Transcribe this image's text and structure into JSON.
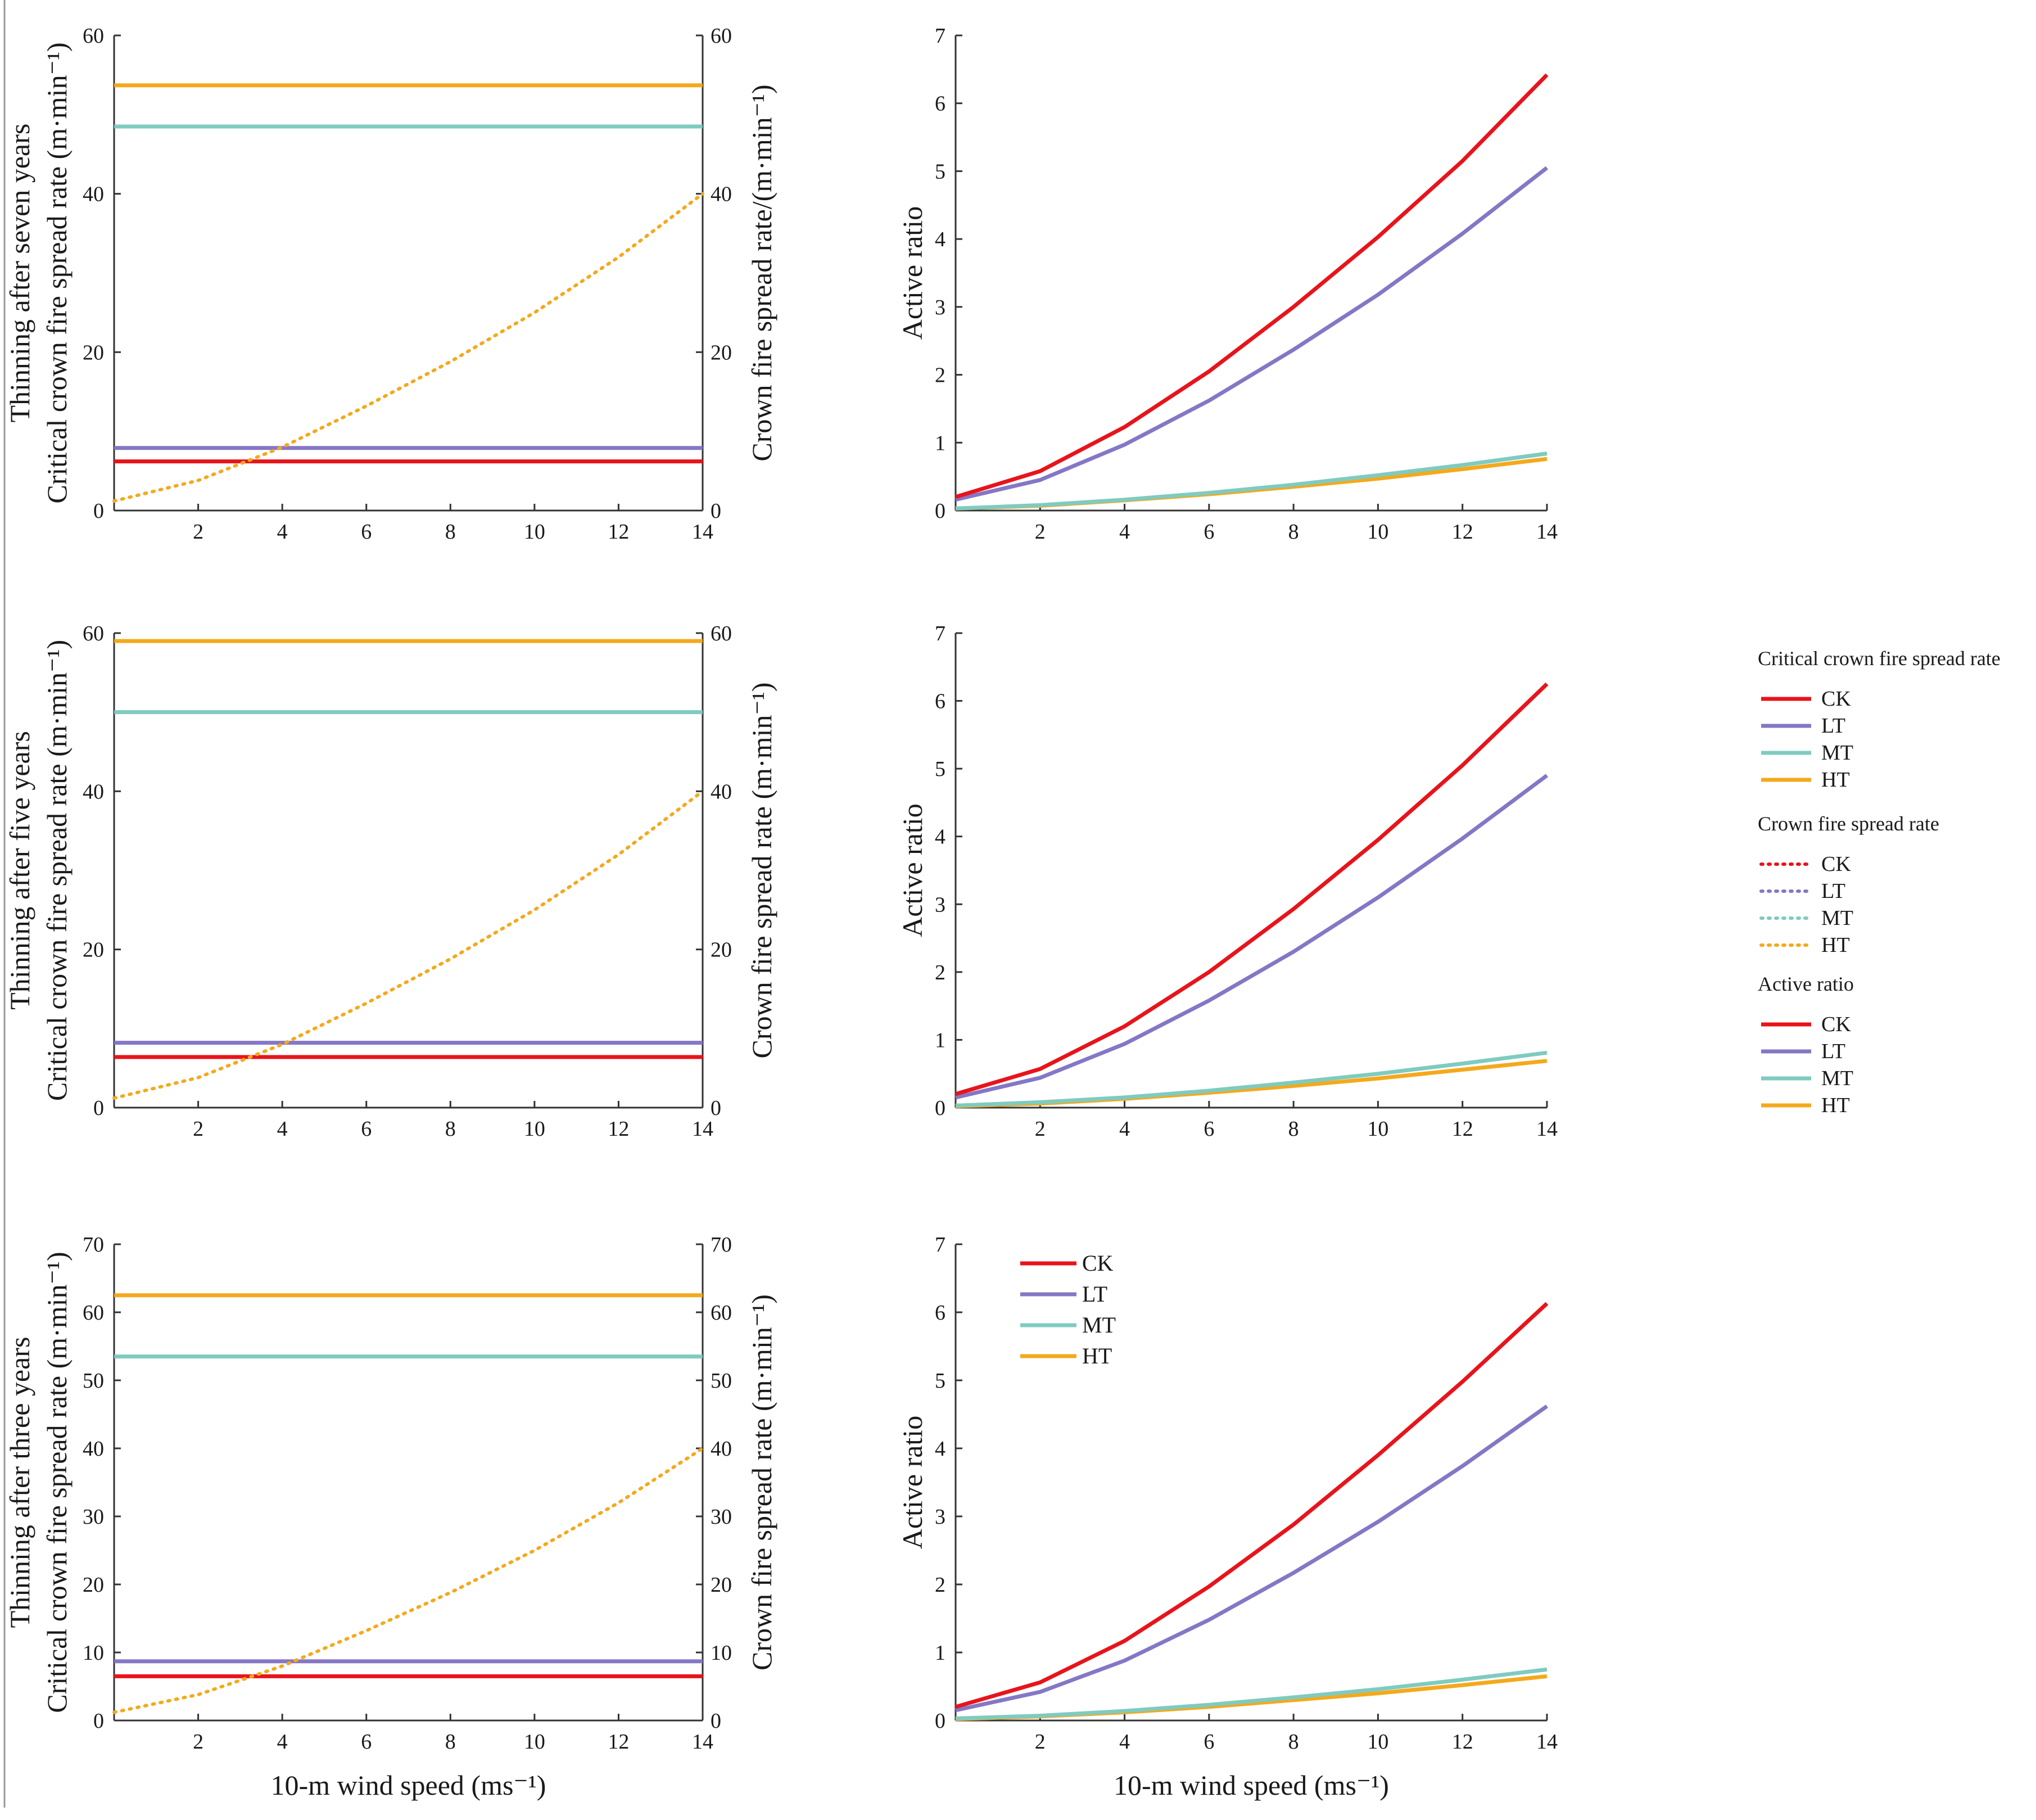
{
  "colors": {
    "CK": "#e8141b",
    "LT": "#8577c5",
    "MT": "#7fcbc0",
    "HT": "#f4a91c",
    "axis": "#333333"
  },
  "legend": {
    "groups": [
      {
        "title": "Critical crown fire spread rate",
        "style": "solid",
        "items": [
          "CK",
          "LT",
          "MT",
          "HT"
        ]
      },
      {
        "title": "Crown fire spread rate",
        "style": "dotted",
        "items": [
          "CK",
          "LT",
          "MT",
          "HT"
        ]
      },
      {
        "title": "Active ratio",
        "style": "solid",
        "items": [
          "CK",
          "LT",
          "MT",
          "HT"
        ]
      }
    ]
  },
  "inset_legend": {
    "items": [
      "CK",
      "LT",
      "MT",
      "HT"
    ]
  },
  "chart_data": [
    {
      "type": "line",
      "row_label": "Thinning after seven years",
      "ylabel": "Critical crown fire spread rate (m·min⁻¹)",
      "y2label": "Crown fire spread rate/(m·min⁻¹)",
      "xlabel": "",
      "xlim": [
        0,
        14
      ],
      "ylim": [
        0,
        60
      ],
      "y2lim": [
        0,
        60
      ],
      "xticks": [
        2,
        4,
        6,
        8,
        10,
        12,
        14
      ],
      "yticks": [
        0,
        20,
        40,
        60
      ],
      "y2ticks": [
        0,
        20,
        40,
        60
      ],
      "critical": [
        {
          "name": "CK",
          "value": 6.2
        },
        {
          "name": "LT",
          "value": 7.9
        },
        {
          "name": "MT",
          "value": 48.5
        },
        {
          "name": "HT",
          "value": 53.7
        }
      ],
      "crown_fire": {
        "x": [
          0,
          2,
          4,
          6,
          8,
          10,
          12,
          14
        ],
        "series": [
          {
            "name": "HT",
            "values": [
              1.2,
              3.8,
              8.0,
              13.2,
              18.8,
              25.0,
              32.0,
              40.0
            ]
          }
        ]
      }
    },
    {
      "type": "line",
      "ylabel": "Active ratio",
      "xlim": [
        0,
        14
      ],
      "ylim": [
        0,
        7
      ],
      "xticks": [
        2,
        4,
        6,
        8,
        10,
        12,
        14
      ],
      "yticks": [
        0,
        1,
        2,
        3,
        4,
        5,
        6,
        7
      ],
      "x": [
        0,
        2,
        4,
        6,
        8,
        10,
        12,
        14
      ],
      "series": [
        {
          "name": "CK",
          "values": [
            0.2,
            0.58,
            1.23,
            2.05,
            3.0,
            4.03,
            5.15,
            6.42
          ]
        },
        {
          "name": "LT",
          "values": [
            0.16,
            0.45,
            0.97,
            1.62,
            2.37,
            3.18,
            4.08,
            5.05
          ]
        },
        {
          "name": "MT",
          "values": [
            0.03,
            0.08,
            0.16,
            0.26,
            0.38,
            0.52,
            0.67,
            0.84
          ]
        },
        {
          "name": "HT",
          "values": [
            0.03,
            0.07,
            0.15,
            0.24,
            0.35,
            0.47,
            0.61,
            0.76
          ]
        }
      ]
    },
    {
      "type": "line",
      "row_label": "Thinning after five years",
      "ylabel": "Critical crown fire spread rate (m·min⁻¹)",
      "y2label": "Crown fire spread rate (m·min⁻¹)",
      "xlabel": "",
      "xlim": [
        0,
        14
      ],
      "ylim": [
        0,
        60
      ],
      "y2lim": [
        0,
        60
      ],
      "xticks": [
        2,
        4,
        6,
        8,
        10,
        12,
        14
      ],
      "yticks": [
        0,
        20,
        40,
        60
      ],
      "y2ticks": [
        0,
        20,
        40,
        60
      ],
      "critical": [
        {
          "name": "CK",
          "value": 6.4
        },
        {
          "name": "LT",
          "value": 8.2
        },
        {
          "name": "MT",
          "value": 50.0
        },
        {
          "name": "HT",
          "value": 59.0
        }
      ],
      "crown_fire": {
        "x": [
          0,
          2,
          4,
          6,
          8,
          10,
          12,
          14
        ],
        "series": [
          {
            "name": "HT",
            "values": [
              1.2,
              3.8,
              8.0,
              13.2,
              18.8,
              25.0,
              32.0,
              40.0
            ]
          }
        ]
      }
    },
    {
      "type": "line",
      "ylabel": "Active ratio",
      "xlim": [
        0,
        14
      ],
      "ylim": [
        0,
        7
      ],
      "xticks": [
        2,
        4,
        6,
        8,
        10,
        12,
        14
      ],
      "yticks": [
        0,
        1,
        2,
        3,
        4,
        5,
        6,
        7
      ],
      "x": [
        0,
        2,
        4,
        6,
        8,
        10,
        12,
        14
      ],
      "series": [
        {
          "name": "CK",
          "values": [
            0.2,
            0.57,
            1.2,
            2.0,
            2.93,
            3.95,
            5.05,
            6.25
          ]
        },
        {
          "name": "LT",
          "values": [
            0.15,
            0.44,
            0.94,
            1.58,
            2.3,
            3.1,
            3.97,
            4.9
          ]
        },
        {
          "name": "MT",
          "values": [
            0.03,
            0.08,
            0.15,
            0.25,
            0.37,
            0.5,
            0.65,
            0.81
          ]
        },
        {
          "name": "HT",
          "values": [
            0.02,
            0.06,
            0.13,
            0.22,
            0.32,
            0.43,
            0.56,
            0.69
          ]
        }
      ]
    },
    {
      "type": "line",
      "row_label": "Thinning after three years",
      "ylabel": "Critical crown fire spread rate (m·min⁻¹)",
      "y2label": "Crown fire spread rate (m·min⁻¹)",
      "xlabel": "10-m wind speed (ms⁻¹)",
      "xlim": [
        0,
        14
      ],
      "ylim": [
        0,
        70
      ],
      "y2lim": [
        0,
        70
      ],
      "xticks": [
        2,
        4,
        6,
        8,
        10,
        12,
        14
      ],
      "yticks": [
        0,
        10,
        20,
        30,
        40,
        50,
        60,
        70
      ],
      "y2ticks": [
        0,
        10,
        20,
        30,
        40,
        50,
        60,
        70
      ],
      "critical": [
        {
          "name": "CK",
          "value": 6.5
        },
        {
          "name": "LT",
          "value": 8.7
        },
        {
          "name": "MT",
          "value": 53.5
        },
        {
          "name": "HT",
          "value": 62.5
        }
      ],
      "crown_fire": {
        "x": [
          0,
          2,
          4,
          6,
          8,
          10,
          12,
          14
        ],
        "series": [
          {
            "name": "HT",
            "values": [
              1.2,
              3.8,
              8.0,
              13.2,
              18.8,
              25.0,
              32.0,
              40.0
            ]
          }
        ]
      }
    },
    {
      "type": "line",
      "ylabel": "Active ratio",
      "xlabel": "10-m wind speed (ms⁻¹)",
      "xlim": [
        0,
        14
      ],
      "ylim": [
        0,
        7
      ],
      "xticks": [
        2,
        4,
        6,
        8,
        10,
        12,
        14
      ],
      "yticks": [
        0,
        1,
        2,
        3,
        4,
        5,
        6,
        7
      ],
      "x": [
        0,
        2,
        4,
        6,
        8,
        10,
        12,
        14
      ],
      "series": [
        {
          "name": "CK",
          "values": [
            0.2,
            0.56,
            1.17,
            1.97,
            2.88,
            3.9,
            4.98,
            6.13
          ]
        },
        {
          "name": "LT",
          "values": [
            0.15,
            0.42,
            0.88,
            1.48,
            2.17,
            2.92,
            3.74,
            4.62
          ]
        },
        {
          "name": "MT",
          "values": [
            0.03,
            0.07,
            0.14,
            0.23,
            0.34,
            0.46,
            0.6,
            0.75
          ]
        },
        {
          "name": "HT",
          "values": [
            0.02,
            0.06,
            0.12,
            0.2,
            0.3,
            0.4,
            0.52,
            0.65
          ]
        }
      ]
    }
  ]
}
